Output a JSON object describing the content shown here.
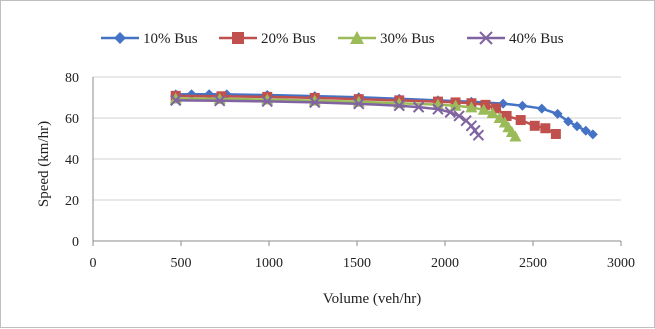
{
  "chart_data": {
    "type": "line",
    "title": "",
    "xlabel": "Volume (veh/hr)",
    "ylabel": "Speed (km/hr)",
    "xlim": [
      0,
      3000
    ],
    "ylim": [
      0,
      80
    ],
    "xticks": [
      "0",
      "500",
      "1000",
      "1500",
      "2000",
      "2500",
      "3000"
    ],
    "yticks": [
      "0",
      "20",
      "40",
      "60",
      "80"
    ],
    "grid": "horizontal",
    "legend": "top",
    "series": [
      {
        "name": "10% Bus",
        "color": "#4472C4",
        "marker": "diamond",
        "points": [
          [
            470,
            71.5
          ],
          [
            560,
            71.6
          ],
          [
            660,
            71.6
          ],
          [
            760,
            71.5
          ],
          [
            990,
            71.2
          ],
          [
            1260,
            70.7
          ],
          [
            1510,
            70.1
          ],
          [
            1740,
            69.4
          ],
          [
            1960,
            68.6
          ],
          [
            2150,
            67.9
          ],
          [
            2330,
            67.0
          ],
          [
            2440,
            66.0
          ],
          [
            2550,
            64.6
          ],
          [
            2640,
            62.0
          ],
          [
            2700,
            58.3
          ],
          [
            2750,
            56.0
          ],
          [
            2800,
            53.8
          ],
          [
            2840,
            52.0
          ]
        ]
      },
      {
        "name": "20% Bus",
        "color": "#C0504D",
        "marker": "square",
        "points": [
          [
            470,
            70.8
          ],
          [
            730,
            70.6
          ],
          [
            990,
            70.3
          ],
          [
            1260,
            69.8
          ],
          [
            1510,
            69.2
          ],
          [
            1740,
            68.6
          ],
          [
            1960,
            68.0
          ],
          [
            2060,
            67.6
          ],
          [
            2150,
            67.2
          ],
          [
            2230,
            66.4
          ],
          [
            2290,
            64.7
          ],
          [
            2350,
            61.0
          ],
          [
            2430,
            59.0
          ],
          [
            2510,
            56.2
          ],
          [
            2570,
            55.0
          ],
          [
            2630,
            52.2
          ]
        ]
      },
      {
        "name": "30% Bus",
        "color": "#9BBB59",
        "marker": "triangle",
        "points": [
          [
            470,
            69.5
          ],
          [
            720,
            69.3
          ],
          [
            990,
            69.0
          ],
          [
            1260,
            68.5
          ],
          [
            1510,
            67.9
          ],
          [
            1740,
            67.2
          ],
          [
            1960,
            66.5
          ],
          [
            2060,
            66.0
          ],
          [
            2150,
            65.2
          ],
          [
            2220,
            64.0
          ],
          [
            2270,
            62.4
          ],
          [
            2310,
            60.0
          ],
          [
            2340,
            57.8
          ],
          [
            2360,
            55.5
          ],
          [
            2380,
            53.2
          ],
          [
            2400,
            51.0
          ]
        ]
      },
      {
        "name": "40% Bus",
        "color": "#8064A2",
        "marker": "x",
        "points": [
          [
            470,
            68.6
          ],
          [
            720,
            68.4
          ],
          [
            990,
            68.1
          ],
          [
            1260,
            67.6
          ],
          [
            1510,
            66.9
          ],
          [
            1740,
            66.0
          ],
          [
            1850,
            65.3
          ],
          [
            1960,
            64.3
          ],
          [
            2030,
            62.8
          ],
          [
            2080,
            61.0
          ],
          [
            2120,
            58.7
          ],
          [
            2150,
            56.2
          ],
          [
            2170,
            53.9
          ],
          [
            2190,
            51.6
          ]
        ]
      }
    ]
  }
}
